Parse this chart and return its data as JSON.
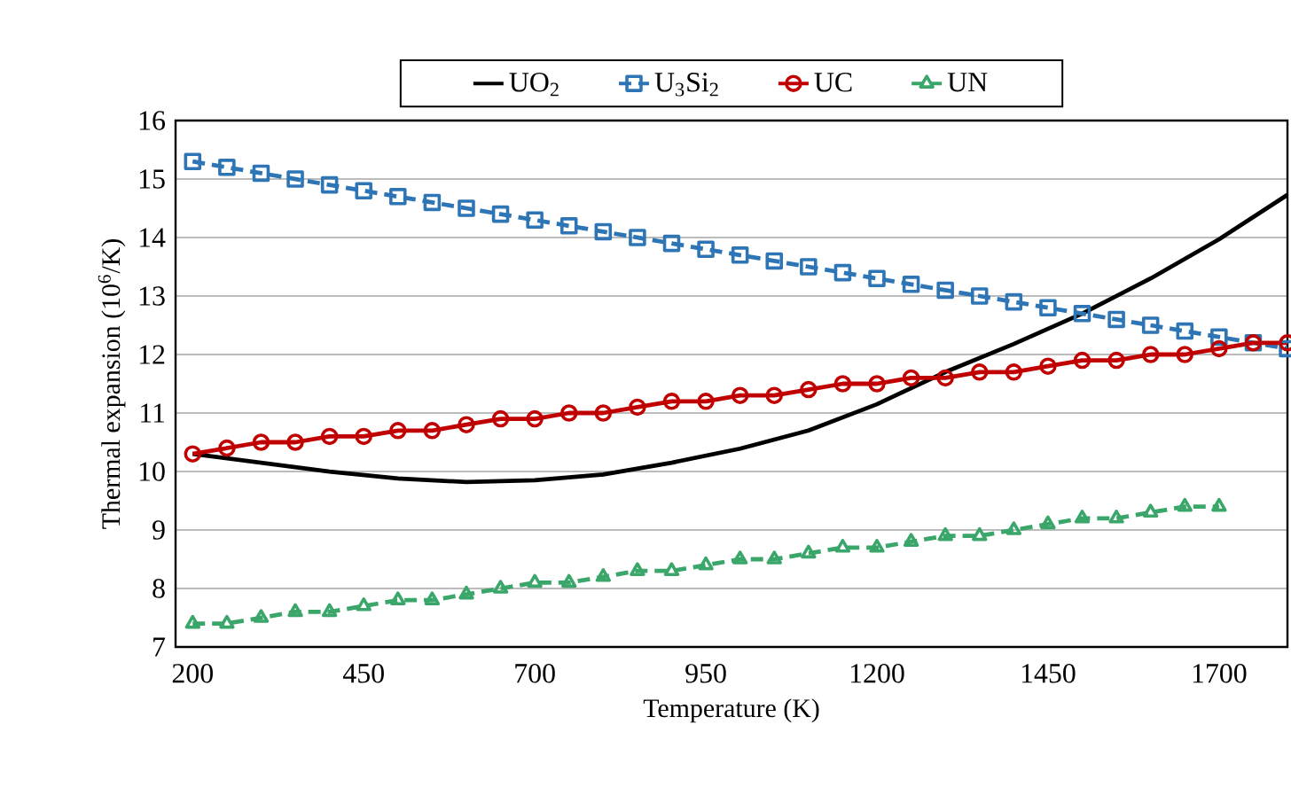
{
  "chart_data": {
    "type": "line",
    "xlabel": "Temperature (K)",
    "ylabel": "Thermal expansion (10$^{6}$/K)",
    "xlim": [
      175,
      1800
    ],
    "xticks": [
      200,
      450,
      700,
      950,
      1200,
      1450,
      1700
    ],
    "ylim": [
      7,
      16
    ],
    "yticks": [
      7,
      8,
      9,
      10,
      11,
      12,
      13,
      14,
      15,
      16
    ],
    "grid": "y",
    "legend": "top",
    "series": [
      {
        "name": "UO$_{2}$",
        "color": "#000000",
        "marker": "none",
        "line_style": "solid",
        "x": [
          200,
          300,
          400,
          500,
          600,
          700,
          800,
          900,
          1000,
          1100,
          1200,
          1300,
          1400,
          1500,
          1600,
          1700,
          1800
        ],
        "values": [
          10.3,
          10.15,
          10.0,
          9.88,
          9.82,
          9.85,
          9.95,
          10.15,
          10.39,
          10.7,
          11.15,
          11.7,
          12.18,
          12.7,
          13.3,
          13.97,
          14.73
        ]
      },
      {
        "name": "U$_{3}$Si$_{2}$",
        "color": "#2e75b6",
        "marker": "square",
        "line_style": "dashed",
        "x": [
          200,
          250,
          300,
          350,
          400,
          450,
          500,
          550,
          600,
          650,
          700,
          750,
          800,
          850,
          900,
          950,
          1000,
          1050,
          1100,
          1150,
          1200,
          1250,
          1300,
          1350,
          1400,
          1450,
          1500,
          1550,
          1600,
          1650,
          1700,
          1750,
          1800
        ],
        "values": [
          15.3,
          15.2,
          15.1,
          15.0,
          14.9,
          14.8,
          14.7,
          14.6,
          14.5,
          14.4,
          14.3,
          14.2,
          14.1,
          14.0,
          13.9,
          13.8,
          13.7,
          13.6,
          13.5,
          13.4,
          13.3,
          13.2,
          13.1,
          13.0,
          12.9,
          12.8,
          12.7,
          12.6,
          12.5,
          12.4,
          12.3,
          12.2,
          12.1
        ]
      },
      {
        "name": "UC",
        "color": "#c00000",
        "marker": "circle",
        "line_style": "solid",
        "x": [
          200,
          250,
          300,
          350,
          400,
          450,
          500,
          550,
          600,
          650,
          700,
          750,
          800,
          850,
          900,
          950,
          1000,
          1050,
          1100,
          1150,
          1200,
          1250,
          1300,
          1350,
          1400,
          1450,
          1500,
          1550,
          1600,
          1650,
          1700,
          1750,
          1800
        ],
        "values": [
          10.3,
          10.4,
          10.5,
          10.5,
          10.6,
          10.6,
          10.7,
          10.7,
          10.8,
          10.9,
          10.9,
          11.0,
          11.0,
          11.1,
          11.2,
          11.2,
          11.3,
          11.3,
          11.4,
          11.5,
          11.5,
          11.6,
          11.6,
          11.7,
          11.7,
          11.8,
          11.9,
          11.9,
          12.0,
          12.0,
          12.1,
          12.2,
          12.2
        ]
      },
      {
        "name": "UN",
        "color": "#3aa66a",
        "marker": "triangle",
        "line_style": "dashed",
        "x": [
          200,
          250,
          300,
          350,
          400,
          450,
          500,
          550,
          600,
          650,
          700,
          750,
          800,
          850,
          900,
          950,
          1000,
          1050,
          1100,
          1150,
          1200,
          1250,
          1300,
          1350,
          1400,
          1450,
          1500,
          1550,
          1600,
          1650,
          1700
        ],
        "values": [
          7.4,
          7.4,
          7.5,
          7.6,
          7.6,
          7.7,
          7.8,
          7.8,
          7.9,
          8.0,
          8.1,
          8.1,
          8.2,
          8.3,
          8.3,
          8.4,
          8.5,
          8.5,
          8.6,
          8.7,
          8.7,
          8.8,
          8.9,
          8.9,
          9.0,
          9.1,
          9.2,
          9.2,
          9.3,
          9.4,
          9.4
        ]
      }
    ]
  }
}
